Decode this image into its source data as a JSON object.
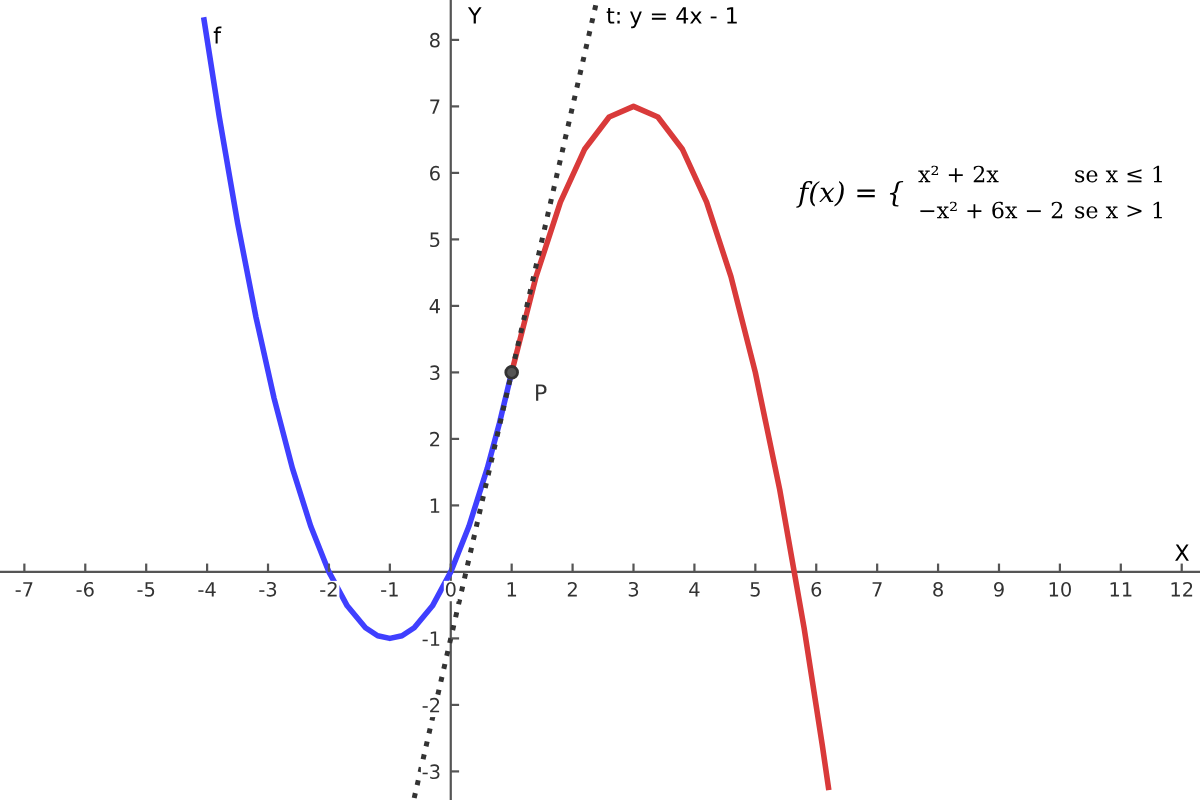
{
  "chart_data": {
    "type": "line",
    "xlabel": "X",
    "ylabel": "Y",
    "xlim": [
      -7.4,
      12.3
    ],
    "ylim": [
      -3.43,
      8.6
    ],
    "xticks": [
      -7,
      -6,
      -5,
      -4,
      -3,
      -2,
      -1,
      0,
      1,
      2,
      3,
      4,
      5,
      6,
      7,
      8,
      9,
      10,
      11,
      12
    ],
    "yticks": [
      -3,
      -2,
      -1,
      1,
      2,
      3,
      4,
      5,
      6,
      7,
      8
    ],
    "grid": false,
    "line_style": "solid",
    "marker": "none",
    "series": [
      {
        "name": "f",
        "color": "#3f3fff",
        "x": [
          -4.05,
          -3.8,
          -3.5,
          -3.2,
          -2.9,
          -2.6,
          -2.3,
          -2,
          -1.7,
          -1.4,
          -1.2,
          -1,
          -0.8,
          -0.6,
          -0.3,
          0,
          0.3,
          0.6,
          0.8,
          1
        ],
        "values": [
          8.3,
          6.84,
          5.25,
          3.84,
          2.61,
          1.56,
          0.69,
          0,
          -0.51,
          -0.84,
          -0.96,
          -1,
          -0.96,
          -0.84,
          -0.51,
          0,
          0.69,
          1.56,
          2.24,
          3
        ]
      },
      {
        "color": "#d93a3a",
        "x": [
          1,
          1.4,
          1.8,
          2.2,
          2.6,
          3,
          3.4,
          3.8,
          4.2,
          4.6,
          5,
          5.4,
          5.8,
          6.1,
          6.2
        ],
        "values": [
          3,
          4.44,
          5.56,
          6.36,
          6.84,
          7,
          6.84,
          6.36,
          5.56,
          4.44,
          3,
          1.24,
          -0.84,
          -2.61,
          -3.24
        ]
      },
      {
        "name": "t: y = 4x - 1",
        "color": "#333333",
        "line_style": "dotted",
        "x": [
          -0.6,
          2.4
        ],
        "values": [
          -3.4,
          8.6
        ]
      },
      {
        "type": "scatter",
        "color": "#555555",
        "marker": "circle",
        "x": [
          1
        ],
        "values": [
          3
        ]
      }
    ],
    "annotations": [
      {
        "text": "P",
        "x": 1,
        "y": 3
      },
      "f(x) = {",
      "x² + 2x",
      "se x ≤ 1",
      "−x² + 6x − 2",
      "se x > 1"
    ]
  }
}
